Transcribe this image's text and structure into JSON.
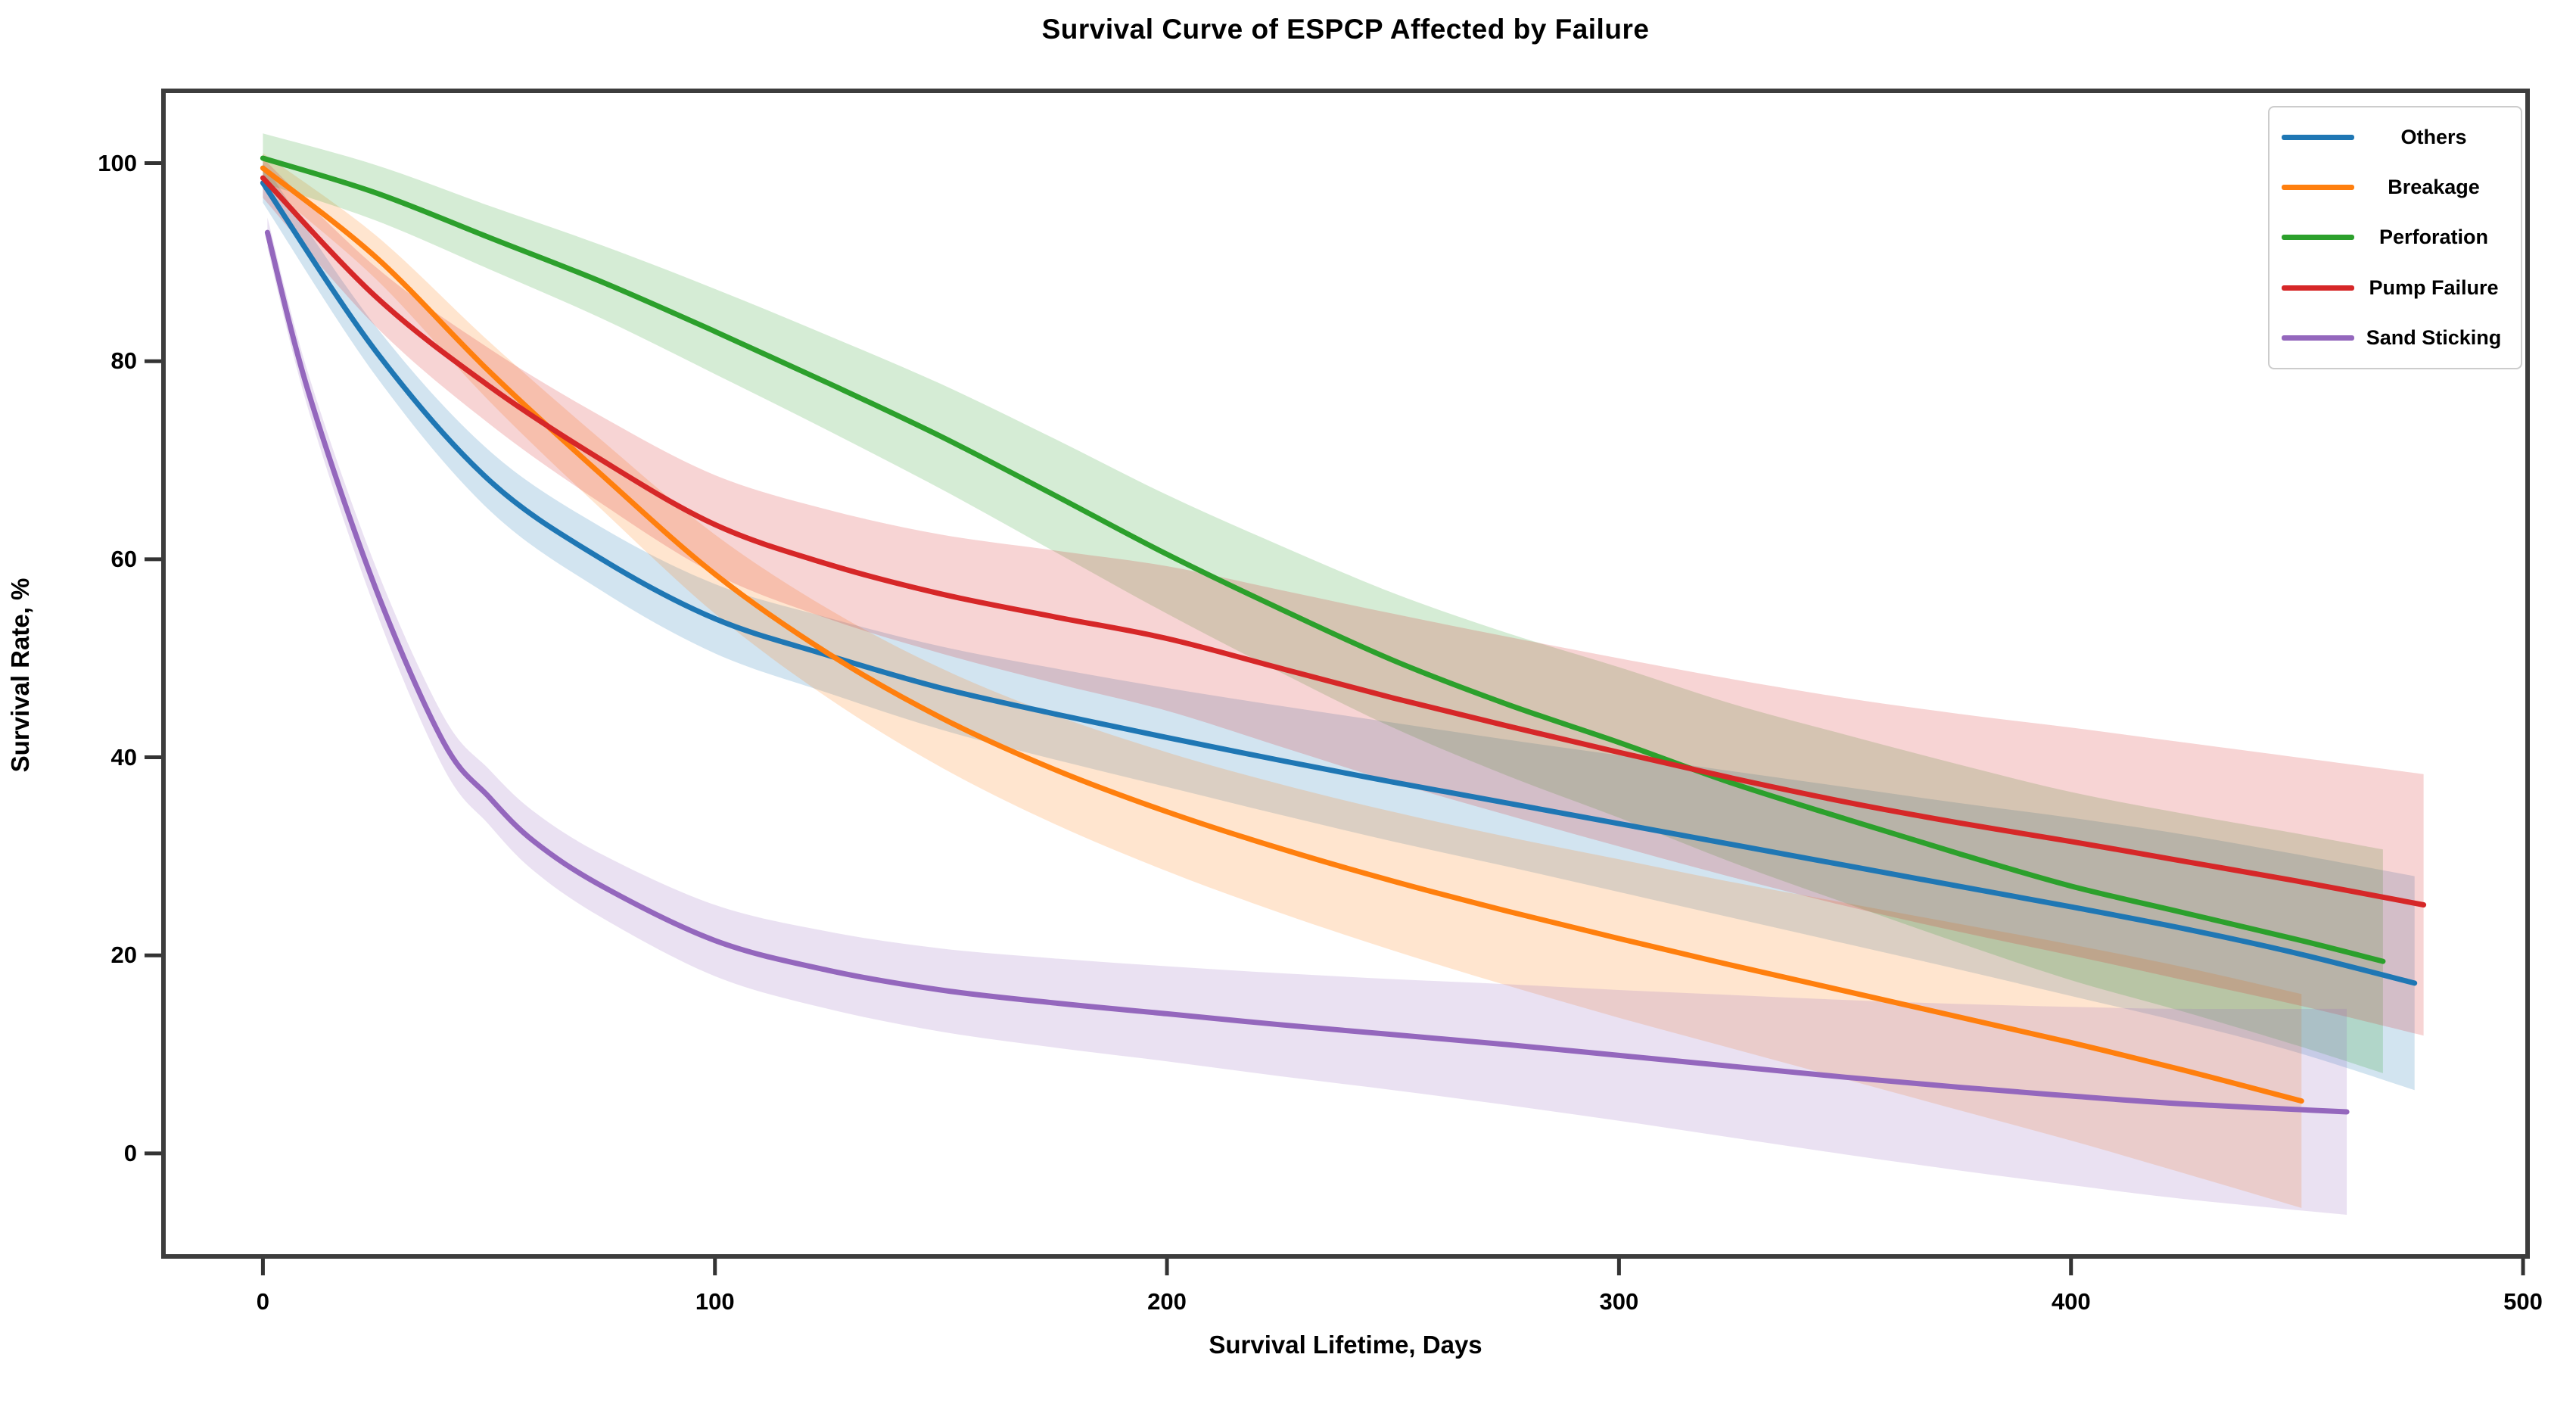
{
  "chart_data": {
    "type": "line",
    "title": "Survival Curve of ESPCP Affected by Failure",
    "xlabel": "Survival Lifetime, Days",
    "ylabel": "Survival Rate, %",
    "grid": false,
    "legend_position": "upper right",
    "band_alpha": 0.2,
    "axes": {
      "x": {
        "ticks": [
          0,
          100,
          200,
          300,
          400,
          500
        ],
        "range": [
          -22,
          501
        ]
      },
      "y": {
        "ticks": [
          0,
          20,
          40,
          60,
          80,
          100
        ],
        "range": [
          -10.4,
          107.3
        ]
      }
    },
    "series": [
      {
        "name": "Others",
        "color": "#1f77b4",
        "points": [
          [
            0,
            98,
            2
          ],
          [
            25,
            81,
            2.5
          ],
          [
            50,
            68,
            3
          ],
          [
            75,
            60,
            3.2
          ],
          [
            100,
            54,
            3.5
          ],
          [
            125,
            50.3,
            3.8
          ],
          [
            150,
            47,
            4.2
          ],
          [
            175,
            44.4,
            4.6
          ],
          [
            200,
            42,
            5
          ],
          [
            225,
            39.7,
            5.5
          ],
          [
            250,
            37.5,
            6
          ],
          [
            275,
            35.4,
            6.4
          ],
          [
            300,
            33.3,
            6.9
          ],
          [
            325,
            31.2,
            7.4
          ],
          [
            350,
            29.1,
            7.9
          ],
          [
            375,
            27,
            8.4
          ],
          [
            400,
            24.9,
            9
          ],
          [
            425,
            22.7,
            9.5
          ],
          [
            450,
            20.2,
            10
          ],
          [
            476,
            17.2,
            10.8
          ]
        ]
      },
      {
        "name": "Breakage",
        "color": "#ff7f0e",
        "points": [
          [
            0,
            99.5,
            1.5
          ],
          [
            25,
            90.5,
            2.2
          ],
          [
            50,
            79,
            3
          ],
          [
            75,
            68.5,
            3.5
          ],
          [
            100,
            58.5,
            4
          ],
          [
            125,
            50.5,
            4.5
          ],
          [
            150,
            44,
            5
          ],
          [
            175,
            38.8,
            5.5
          ],
          [
            200,
            34.5,
            6
          ],
          [
            225,
            30.8,
            6.5
          ],
          [
            250,
            27.5,
            7
          ],
          [
            275,
            24.5,
            7.5
          ],
          [
            300,
            21.7,
            8
          ],
          [
            325,
            19,
            8.4
          ],
          [
            350,
            16.4,
            8.9
          ],
          [
            375,
            13.8,
            9.4
          ],
          [
            400,
            11.2,
            9.9
          ],
          [
            425,
            8.4,
            10.4
          ],
          [
            451,
            5.3,
            10.8
          ]
        ]
      },
      {
        "name": "Perforation",
        "color": "#2ca02c",
        "points": [
          [
            0,
            100.5,
            2.5
          ],
          [
            25,
            97,
            2.8
          ],
          [
            50,
            92.5,
            3.2
          ],
          [
            75,
            88,
            3.7
          ],
          [
            100,
            83,
            4.3
          ],
          [
            125,
            77.8,
            4.8
          ],
          [
            150,
            72.4,
            5.3
          ],
          [
            175,
            66.5,
            5.7
          ],
          [
            200,
            60.5,
            6
          ],
          [
            225,
            55,
            6.4
          ],
          [
            250,
            49.8,
            6.8
          ],
          [
            275,
            45.4,
            7.2
          ],
          [
            300,
            41.5,
            7.6
          ],
          [
            325,
            37.4,
            8
          ],
          [
            350,
            33.8,
            8.5
          ],
          [
            375,
            30.3,
            9
          ],
          [
            400,
            27,
            9.5
          ],
          [
            425,
            24.3,
            10
          ],
          [
            450,
            21.6,
            10.7
          ],
          [
            469,
            19.4,
            11.3
          ]
        ]
      },
      {
        "name": "Pump Failure",
        "color": "#d62728",
        "points": [
          [
            0,
            98.5,
            2
          ],
          [
            25,
            86.5,
            3
          ],
          [
            50,
            77.5,
            3.8
          ],
          [
            75,
            70,
            4.4
          ],
          [
            100,
            63.5,
            5
          ],
          [
            125,
            59.5,
            5.5
          ],
          [
            150,
            56.5,
            6
          ],
          [
            175,
            54.2,
            6.7
          ],
          [
            200,
            52,
            7.3
          ],
          [
            225,
            49,
            7.9
          ],
          [
            250,
            46,
            8.5
          ],
          [
            275,
            43.2,
            9
          ],
          [
            300,
            40.5,
            9.5
          ],
          [
            325,
            37.9,
            10
          ],
          [
            350,
            35.5,
            10.5
          ],
          [
            375,
            33.4,
            11
          ],
          [
            400,
            31.5,
            11.5
          ],
          [
            425,
            29.5,
            12
          ],
          [
            450,
            27.5,
            12.5
          ],
          [
            478,
            25.1,
            13.2
          ]
        ]
      },
      {
        "name": "Sand Sticking",
        "color": "#9467bd",
        "points": [
          [
            1,
            93,
            1.5
          ],
          [
            10,
            77,
            1.8
          ],
          [
            25,
            57,
            2.2
          ],
          [
            40,
            41.5,
            2.6
          ],
          [
            50,
            36,
            2.8
          ],
          [
            60,
            31.5,
            3
          ],
          [
            75,
            27,
            3.2
          ],
          [
            100,
            21.5,
            3.6
          ],
          [
            125,
            18.5,
            3.9
          ],
          [
            150,
            16.5,
            4.2
          ],
          [
            175,
            15.2,
            4.5
          ],
          [
            200,
            14.1,
            4.8
          ],
          [
            225,
            13,
            5.2
          ],
          [
            250,
            12,
            5.6
          ],
          [
            275,
            11,
            6.1
          ],
          [
            300,
            9.9,
            6.6
          ],
          [
            325,
            8.8,
            7.2
          ],
          [
            350,
            7.7,
            7.8
          ],
          [
            375,
            6.7,
            8.4
          ],
          [
            400,
            5.8,
            9
          ],
          [
            425,
            5,
            9.6
          ],
          [
            461,
            4.2,
            10.4
          ]
        ]
      }
    ]
  }
}
